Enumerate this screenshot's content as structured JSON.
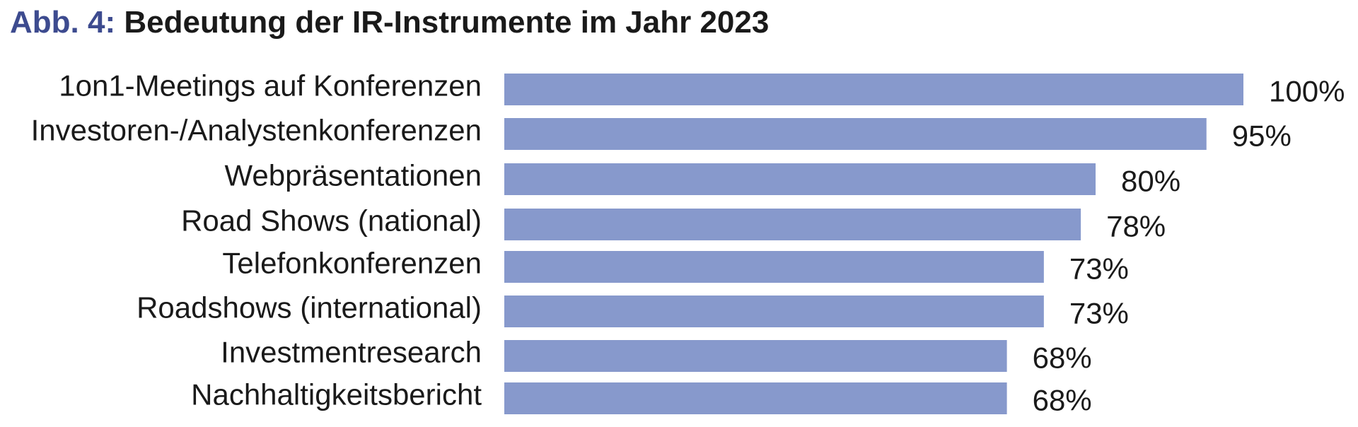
{
  "title": {
    "prefix": "Abb. 4:",
    "text": "Bedeutung der IR-Instrumente im Jahr 2023"
  },
  "colors": {
    "bar": "#8799cc",
    "title_prefix": "#3d4b8f",
    "text": "#1a1a1a"
  },
  "chart_data": {
    "type": "bar",
    "orientation": "horizontal",
    "categories": [
      "1on1-Meetings auf Konferenzen",
      "Investoren-/Analystenkonferenzen",
      "Webpräsentationen",
      "Road Shows (national)",
      "Telefonkonferenzen",
      "Roadshows (international)",
      "Investmentresearch",
      "Nachhaltigkeitsbericht"
    ],
    "values": [
      100,
      95,
      80,
      78,
      73,
      73,
      68,
      68
    ],
    "value_labels": [
      "100%",
      "95%",
      "80%",
      "78%",
      "73%",
      "73%",
      "68%",
      "68%"
    ],
    "title": "Bedeutung der IR-Instrumente im Jahr 2023",
    "xlabel": "",
    "ylabel": "",
    "xlim": [
      0,
      100
    ],
    "grid": false,
    "legend": "none"
  }
}
